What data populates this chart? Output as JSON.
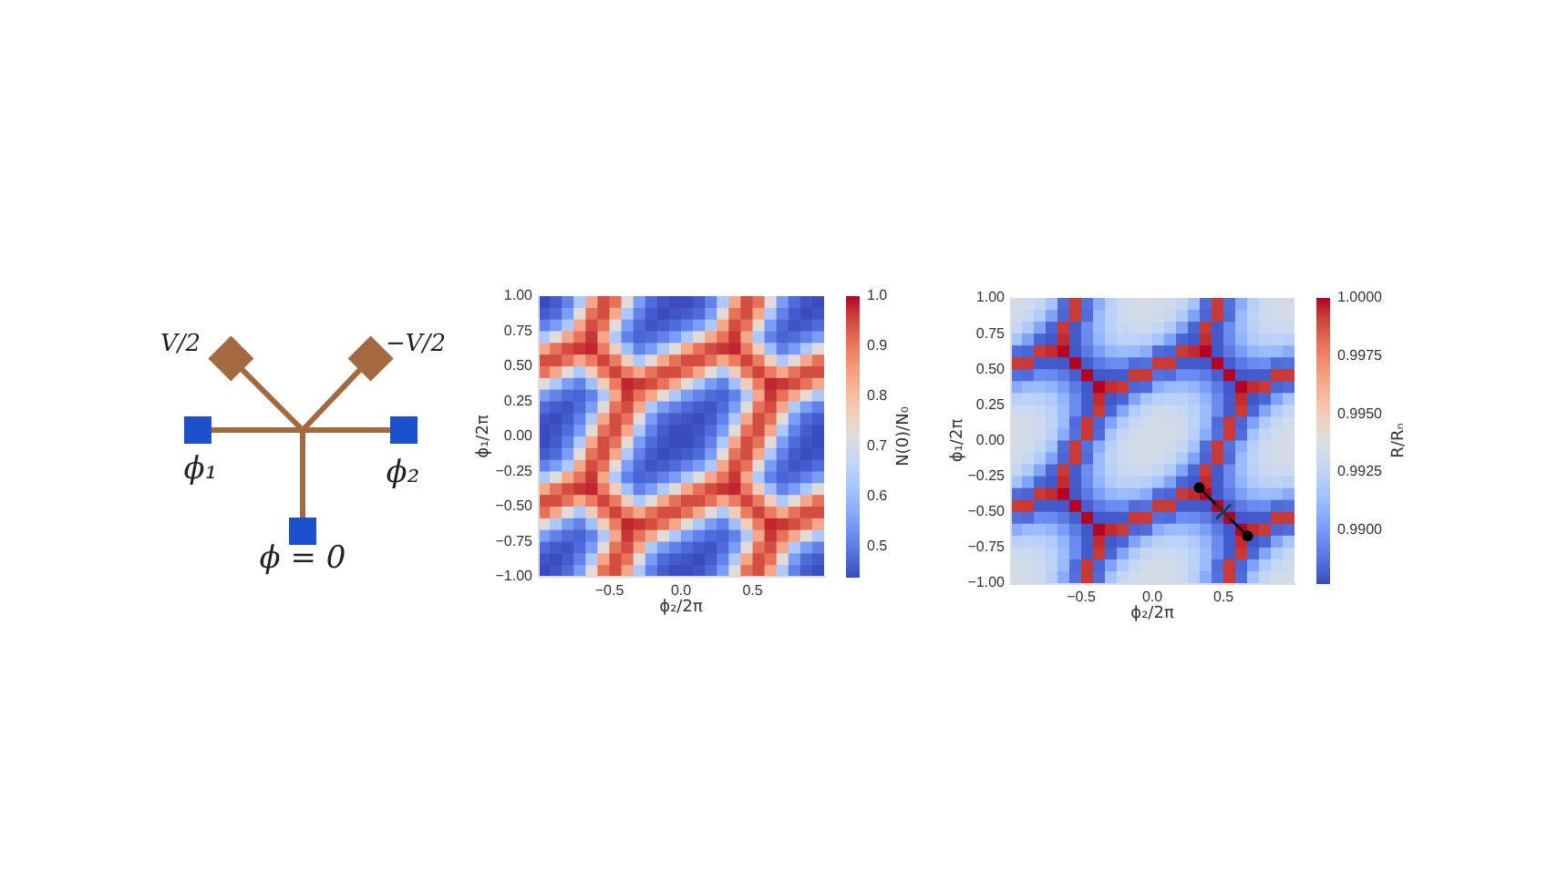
{
  "chart_data": [
    {
      "type": "other",
      "annotations": [
        "V/2",
        "−V/2",
        "ϕ₁",
        "ϕ₂",
        "ϕ = 0"
      ]
    },
    {
      "type": "heatmap",
      "xlabel": "ϕ₂/2π",
      "ylabel": "ϕ₁/2π",
      "clabel": "N(0)/N₀",
      "xlim": [
        -1,
        1
      ],
      "ylim": [
        -1,
        1
      ],
      "xticks": [
        {
          "value": -0.5,
          "label": "−0.5"
        },
        {
          "value": 0,
          "label": "0.0"
        },
        {
          "value": 0.5,
          "label": "0.5"
        }
      ],
      "yticks": [
        {
          "value": -1,
          "label": "−1.00"
        },
        {
          "value": -0.75,
          "label": "−0.75"
        },
        {
          "value": -0.5,
          "label": "−0.50"
        },
        {
          "value": -0.25,
          "label": "−0.25"
        },
        {
          "value": 0,
          "label": "0.00"
        },
        {
          "value": 0.25,
          "label": "0.25"
        },
        {
          "value": 0.5,
          "label": "0.50"
        },
        {
          "value": 0.75,
          "label": "0.75"
        },
        {
          "value": 1,
          "label": "1.00"
        }
      ],
      "clim": [
        0.44,
        1
      ],
      "cticks": [
        {
          "value": 0.5,
          "label": "0.5"
        },
        {
          "value": 0.6,
          "label": "0.6"
        },
        {
          "value": 0.7,
          "label": "0.7"
        },
        {
          "value": 0.8,
          "label": "0.8"
        },
        {
          "value": 0.9,
          "label": "0.9"
        },
        {
          "value": 1,
          "label": "1.0"
        }
      ],
      "cells": [
        [
          0.44,
          0.46,
          0.51,
          0.63,
          0.84,
          0.95,
          0.91,
          0.73,
          0.55,
          0.48,
          0.45,
          0.44,
          0.44,
          0.46,
          0.51,
          0.63,
          0.84,
          0.95,
          0.91,
          0.73,
          0.55,
          0.48,
          0.45,
          0.44
        ],
        [
          0.46,
          0.48,
          0.55,
          0.73,
          0.91,
          0.95,
          0.84,
          0.63,
          0.51,
          0.46,
          0.44,
          0.45,
          0.46,
          0.48,
          0.55,
          0.73,
          0.91,
          0.95,
          0.84,
          0.63,
          0.51,
          0.46,
          0.44,
          0.45
        ],
        [
          0.51,
          0.55,
          0.63,
          0.84,
          0.95,
          0.91,
          0.73,
          0.55,
          0.48,
          0.45,
          0.46,
          0.48,
          0.51,
          0.55,
          0.63,
          0.84,
          0.95,
          0.91,
          0.73,
          0.55,
          0.48,
          0.45,
          0.46,
          0.48
        ],
        [
          0.63,
          0.73,
          0.84,
          0.91,
          0.97,
          0.84,
          0.63,
          0.51,
          0.47,
          0.48,
          0.51,
          0.55,
          0.63,
          0.73,
          0.84,
          0.91,
          0.97,
          0.84,
          0.63,
          0.51,
          0.47,
          0.48,
          0.51,
          0.55
        ],
        [
          0.84,
          0.91,
          0.95,
          0.97,
          0.98,
          0.9,
          0.77,
          0.61,
          0.51,
          0.55,
          0.63,
          0.73,
          0.84,
          0.91,
          0.95,
          0.97,
          0.98,
          0.9,
          0.77,
          0.61,
          0.51,
          0.55,
          0.63,
          0.73
        ],
        [
          0.95,
          0.95,
          0.91,
          0.84,
          0.9,
          0.96,
          0.9,
          0.77,
          0.63,
          0.73,
          0.84,
          0.91,
          0.95,
          0.95,
          0.91,
          0.84,
          0.9,
          0.96,
          0.9,
          0.77,
          0.63,
          0.73,
          0.84,
          0.91
        ],
        [
          0.91,
          0.84,
          0.73,
          0.63,
          0.77,
          0.9,
          0.96,
          0.9,
          0.84,
          0.91,
          0.95,
          0.95,
          0.91,
          0.84,
          0.73,
          0.63,
          0.77,
          0.9,
          0.96,
          0.9,
          0.84,
          0.91,
          0.95,
          0.95
        ],
        [
          0.73,
          0.63,
          0.55,
          0.51,
          0.61,
          0.77,
          0.9,
          0.98,
          0.97,
          0.95,
          0.91,
          0.84,
          0.73,
          0.63,
          0.55,
          0.51,
          0.61,
          0.77,
          0.9,
          0.98,
          0.97,
          0.95,
          0.91,
          0.84
        ],
        [
          0.55,
          0.51,
          0.48,
          0.47,
          0.51,
          0.63,
          0.84,
          0.97,
          0.91,
          0.84,
          0.73,
          0.63,
          0.55,
          0.51,
          0.48,
          0.47,
          0.51,
          0.63,
          0.84,
          0.97,
          0.91,
          0.84,
          0.73,
          0.63
        ],
        [
          0.48,
          0.46,
          0.45,
          0.48,
          0.55,
          0.73,
          0.91,
          0.95,
          0.84,
          0.63,
          0.55,
          0.51,
          0.48,
          0.46,
          0.45,
          0.48,
          0.55,
          0.73,
          0.91,
          0.95,
          0.84,
          0.63,
          0.55,
          0.51
        ],
        [
          0.45,
          0.44,
          0.46,
          0.51,
          0.63,
          0.84,
          0.95,
          0.91,
          0.73,
          0.55,
          0.48,
          0.46,
          0.45,
          0.44,
          0.46,
          0.51,
          0.63,
          0.84,
          0.95,
          0.91,
          0.73,
          0.55,
          0.48,
          0.46
        ],
        [
          0.44,
          0.45,
          0.48,
          0.55,
          0.73,
          0.91,
          0.95,
          0.84,
          0.63,
          0.51,
          0.46,
          0.44,
          0.44,
          0.45,
          0.48,
          0.55,
          0.73,
          0.91,
          0.95,
          0.84,
          0.63,
          0.51,
          0.46,
          0.44
        ],
        [
          0.44,
          0.46,
          0.51,
          0.63,
          0.84,
          0.95,
          0.91,
          0.73,
          0.55,
          0.48,
          0.45,
          0.44,
          0.44,
          0.46,
          0.51,
          0.63,
          0.84,
          0.95,
          0.91,
          0.73,
          0.55,
          0.48,
          0.45,
          0.44
        ],
        [
          0.46,
          0.48,
          0.55,
          0.73,
          0.91,
          0.95,
          0.84,
          0.63,
          0.51,
          0.46,
          0.44,
          0.45,
          0.46,
          0.48,
          0.55,
          0.73,
          0.91,
          0.95,
          0.84,
          0.63,
          0.51,
          0.46,
          0.44,
          0.45
        ],
        [
          0.51,
          0.55,
          0.63,
          0.84,
          0.95,
          0.91,
          0.73,
          0.55,
          0.48,
          0.45,
          0.46,
          0.48,
          0.51,
          0.55,
          0.63,
          0.84,
          0.95,
          0.91,
          0.73,
          0.55,
          0.48,
          0.45,
          0.46,
          0.48
        ],
        [
          0.63,
          0.73,
          0.84,
          0.91,
          0.97,
          0.84,
          0.63,
          0.51,
          0.47,
          0.48,
          0.51,
          0.55,
          0.63,
          0.73,
          0.84,
          0.91,
          0.97,
          0.84,
          0.63,
          0.51,
          0.47,
          0.48,
          0.51,
          0.55
        ],
        [
          0.84,
          0.91,
          0.95,
          0.97,
          0.98,
          0.9,
          0.77,
          0.61,
          0.51,
          0.55,
          0.63,
          0.73,
          0.84,
          0.91,
          0.95,
          0.97,
          0.98,
          0.9,
          0.77,
          0.61,
          0.51,
          0.55,
          0.63,
          0.73
        ],
        [
          0.95,
          0.95,
          0.91,
          0.84,
          0.9,
          0.96,
          0.9,
          0.77,
          0.63,
          0.73,
          0.84,
          0.91,
          0.95,
          0.95,
          0.91,
          0.84,
          0.9,
          0.96,
          0.9,
          0.77,
          0.63,
          0.73,
          0.84,
          0.91
        ],
        [
          0.91,
          0.84,
          0.73,
          0.63,
          0.77,
          0.9,
          0.96,
          0.9,
          0.84,
          0.91,
          0.95,
          0.95,
          0.91,
          0.84,
          0.73,
          0.63,
          0.77,
          0.9,
          0.96,
          0.9,
          0.84,
          0.91,
          0.95,
          0.95
        ],
        [
          0.73,
          0.63,
          0.55,
          0.51,
          0.61,
          0.77,
          0.9,
          0.98,
          0.97,
          0.95,
          0.91,
          0.84,
          0.73,
          0.63,
          0.55,
          0.51,
          0.61,
          0.77,
          0.9,
          0.98,
          0.97,
          0.95,
          0.91,
          0.84
        ],
        [
          0.55,
          0.51,
          0.48,
          0.47,
          0.51,
          0.63,
          0.84,
          0.97,
          0.91,
          0.84,
          0.73,
          0.63,
          0.55,
          0.51,
          0.48,
          0.47,
          0.51,
          0.63,
          0.84,
          0.97,
          0.91,
          0.84,
          0.73,
          0.63
        ],
        [
          0.48,
          0.46,
          0.45,
          0.48,
          0.55,
          0.73,
          0.91,
          0.95,
          0.84,
          0.63,
          0.55,
          0.51,
          0.48,
          0.46,
          0.45,
          0.48,
          0.55,
          0.73,
          0.91,
          0.95,
          0.84,
          0.63,
          0.55,
          0.51
        ],
        [
          0.45,
          0.44,
          0.46,
          0.51,
          0.63,
          0.84,
          0.95,
          0.91,
          0.73,
          0.55,
          0.48,
          0.46,
          0.45,
          0.44,
          0.46,
          0.51,
          0.63,
          0.84,
          0.95,
          0.91,
          0.73,
          0.55,
          0.48,
          0.46
        ],
        [
          0.44,
          0.45,
          0.48,
          0.55,
          0.73,
          0.91,
          0.95,
          0.84,
          0.63,
          0.51,
          0.46,
          0.44,
          0.44,
          0.45,
          0.48,
          0.55,
          0.73,
          0.91,
          0.95,
          0.84,
          0.63,
          0.51,
          0.46,
          0.44
        ]
      ]
    },
    {
      "type": "heatmap",
      "xlabel": "ϕ₂/2π",
      "ylabel": "ϕ₁/2π",
      "clabel": "R/Rₙ",
      "xlim": [
        -1,
        1
      ],
      "ylim": [
        -1,
        1
      ],
      "xticks": [
        {
          "value": -0.5,
          "label": "−0.5"
        },
        {
          "value": 0,
          "label": "0.0"
        },
        {
          "value": 0.5,
          "label": "0.5"
        }
      ],
      "yticks": [
        {
          "value": -1,
          "label": "−1.00"
        },
        {
          "value": -0.75,
          "label": "−0.75"
        },
        {
          "value": -0.5,
          "label": "−0.50"
        },
        {
          "value": -0.25,
          "label": "−0.25"
        },
        {
          "value": 0,
          "label": "0.00"
        },
        {
          "value": 0.25,
          "label": "0.25"
        },
        {
          "value": 0.5,
          "label": "0.50"
        },
        {
          "value": 0.75,
          "label": "0.75"
        },
        {
          "value": 1,
          "label": "1.00"
        }
      ],
      "clim": [
        0.9877,
        1
      ],
      "cticks": [
        {
          "value": 0.99,
          "label": "0.9900"
        },
        {
          "value": 0.9925,
          "label": "0.9925"
        },
        {
          "value": 0.995,
          "label": "0.9950"
        },
        {
          "value": 0.9975,
          "label": "0.9975"
        },
        {
          "value": 1,
          "label": "1.0000"
        }
      ],
      "cells": [
        [
          0.9935,
          0.9932,
          0.9928,
          0.9916,
          0.9886,
          0.9993,
          0.9887,
          0.9906,
          0.9923,
          0.9931,
          0.9934,
          0.9935,
          0.9935,
          0.9932,
          0.9928,
          0.9916,
          0.9886,
          0.9993,
          0.9887,
          0.9906,
          0.9923,
          0.9931,
          0.9934,
          0.9935
        ],
        [
          0.9932,
          0.9929,
          0.992,
          0.9903,
          0.9884,
          0.9993,
          0.9886,
          0.9912,
          0.9925,
          0.9931,
          0.9933,
          0.9934,
          0.9932,
          0.9929,
          0.992,
          0.9903,
          0.9884,
          0.9993,
          0.9886,
          0.9912,
          0.9925,
          0.9931,
          0.9933,
          0.9934
        ],
        [
          0.9928,
          0.992,
          0.9904,
          0.9884,
          0.9993,
          0.9881,
          0.9896,
          0.9913,
          0.9924,
          0.9929,
          0.9931,
          0.9931,
          0.9928,
          0.992,
          0.9904,
          0.9884,
          0.9993,
          0.9881,
          0.9896,
          0.9913,
          0.9924,
          0.9929,
          0.9931,
          0.9931
        ],
        [
          0.9916,
          0.9903,
          0.9884,
          0.988,
          0.9995,
          0.9881,
          0.9895,
          0.991,
          0.992,
          0.9924,
          0.9925,
          0.9923,
          0.9916,
          0.9903,
          0.9884,
          0.988,
          0.9995,
          0.9881,
          0.9895,
          0.991,
          0.992,
          0.9924,
          0.9925,
          0.9923
        ],
        [
          0.9886,
          0.9884,
          0.9993,
          0.9995,
          1,
          0.988,
          0.989,
          0.9901,
          0.991,
          0.9913,
          0.9912,
          0.9906,
          0.9886,
          0.9884,
          0.9993,
          0.9995,
          1,
          0.988,
          0.989,
          0.9901,
          0.991,
          0.9913,
          0.9912,
          0.9906
        ],
        [
          0.9993,
          0.9993,
          0.9881,
          0.9881,
          0.988,
          1,
          0.9882,
          0.989,
          0.9895,
          0.9896,
          0.9886,
          0.9887,
          0.9993,
          0.9993,
          0.9881,
          0.9881,
          0.988,
          1,
          0.9882,
          0.989,
          0.9895,
          0.9896,
          0.9886,
          0.9887
        ],
        [
          0.9887,
          0.9886,
          0.9896,
          0.9895,
          0.989,
          0.9882,
          1,
          0.988,
          0.9881,
          0.9881,
          0.9993,
          0.9993,
          0.9887,
          0.9886,
          0.9896,
          0.9895,
          0.989,
          0.9882,
          1,
          0.988,
          0.9881,
          0.9881,
          0.9993,
          0.9993
        ],
        [
          0.9906,
          0.9912,
          0.9913,
          0.991,
          0.9901,
          0.989,
          0.988,
          1,
          0.9995,
          0.9993,
          0.9884,
          0.9886,
          0.9906,
          0.9912,
          0.9913,
          0.991,
          0.9901,
          0.989,
          0.988,
          1,
          0.9995,
          0.9993,
          0.9884,
          0.9886
        ],
        [
          0.9923,
          0.9925,
          0.9924,
          0.992,
          0.991,
          0.9895,
          0.9881,
          0.9995,
          0.988,
          0.9884,
          0.9903,
          0.9916,
          0.9923,
          0.9925,
          0.9924,
          0.992,
          0.991,
          0.9895,
          0.9881,
          0.9995,
          0.988,
          0.9884,
          0.9903,
          0.9916
        ],
        [
          0.9931,
          0.9931,
          0.9929,
          0.9924,
          0.9913,
          0.9896,
          0.9881,
          0.9993,
          0.9884,
          0.9904,
          0.992,
          0.9928,
          0.9931,
          0.9931,
          0.9929,
          0.9924,
          0.9913,
          0.9896,
          0.9881,
          0.9993,
          0.9884,
          0.9904,
          0.992,
          0.9928
        ],
        [
          0.9934,
          0.9933,
          0.9931,
          0.9925,
          0.9912,
          0.9886,
          0.9993,
          0.9884,
          0.9903,
          0.992,
          0.9929,
          0.9932,
          0.9934,
          0.9933,
          0.9931,
          0.9925,
          0.9912,
          0.9886,
          0.9993,
          0.9884,
          0.9903,
          0.992,
          0.9929,
          0.9932
        ],
        [
          0.9935,
          0.9934,
          0.9931,
          0.9923,
          0.9906,
          0.9887,
          0.9993,
          0.9886,
          0.9916,
          0.9928,
          0.9932,
          0.9935,
          0.9935,
          0.9934,
          0.9931,
          0.9923,
          0.9906,
          0.9887,
          0.9993,
          0.9886,
          0.9916,
          0.9928,
          0.9932,
          0.9935
        ],
        [
          0.9935,
          0.9932,
          0.9928,
          0.9916,
          0.9886,
          0.9993,
          0.9887,
          0.9906,
          0.9923,
          0.9931,
          0.9934,
          0.9935,
          0.9935,
          0.9932,
          0.9928,
          0.9916,
          0.9886,
          0.9993,
          0.9887,
          0.9906,
          0.9923,
          0.9931,
          0.9934,
          0.9935
        ],
        [
          0.9932,
          0.9929,
          0.992,
          0.9903,
          0.9884,
          0.9993,
          0.9886,
          0.9912,
          0.9925,
          0.9931,
          0.9933,
          0.9934,
          0.9932,
          0.9929,
          0.992,
          0.9903,
          0.9884,
          0.9993,
          0.9886,
          0.9912,
          0.9925,
          0.9931,
          0.9933,
          0.9934
        ],
        [
          0.9928,
          0.992,
          0.9904,
          0.9884,
          0.9993,
          0.9881,
          0.9896,
          0.9913,
          0.9924,
          0.9929,
          0.9931,
          0.9931,
          0.9928,
          0.992,
          0.9904,
          0.9884,
          0.9993,
          0.9881,
          0.9896,
          0.9913,
          0.9924,
          0.9929,
          0.9931,
          0.9931
        ],
        [
          0.9916,
          0.9903,
          0.9884,
          0.988,
          0.9995,
          0.9881,
          0.9895,
          0.991,
          0.992,
          0.9924,
          0.9925,
          0.9923,
          0.9916,
          0.9903,
          0.9884,
          0.988,
          0.9995,
          0.9881,
          0.9895,
          0.991,
          0.992,
          0.9924,
          0.9925,
          0.9923
        ],
        [
          0.9886,
          0.9884,
          0.9993,
          0.9995,
          1,
          0.988,
          0.989,
          0.9901,
          0.991,
          0.9913,
          0.9912,
          0.9906,
          0.9886,
          0.9884,
          0.9993,
          0.9995,
          1,
          0.988,
          0.989,
          0.9901,
          0.991,
          0.9913,
          0.9912,
          0.9906
        ],
        [
          0.9993,
          0.9993,
          0.9881,
          0.9881,
          0.988,
          1,
          0.9882,
          0.989,
          0.9895,
          0.9896,
          0.9886,
          0.9887,
          0.9993,
          0.9993,
          0.9881,
          0.9881,
          0.988,
          1,
          0.9882,
          0.989,
          0.9895,
          0.9896,
          0.9886,
          0.9887
        ],
        [
          0.9887,
          0.9886,
          0.9896,
          0.9895,
          0.989,
          0.9882,
          1,
          0.988,
          0.9881,
          0.9881,
          0.9993,
          0.9993,
          0.9887,
          0.9886,
          0.9896,
          0.9895,
          0.989,
          0.9882,
          1,
          0.988,
          0.9881,
          0.9881,
          0.9993,
          0.9993
        ],
        [
          0.9906,
          0.9912,
          0.9913,
          0.991,
          0.9901,
          0.989,
          0.988,
          1,
          0.9995,
          0.9993,
          0.9884,
          0.9886,
          0.9906,
          0.9912,
          0.9913,
          0.991,
          0.9901,
          0.989,
          0.988,
          1,
          0.9995,
          0.9993,
          0.9884,
          0.9886
        ],
        [
          0.9923,
          0.9925,
          0.9924,
          0.992,
          0.991,
          0.9895,
          0.9881,
          0.9995,
          0.988,
          0.9884,
          0.9903,
          0.9916,
          0.9923,
          0.9925,
          0.9924,
          0.992,
          0.991,
          0.9895,
          0.9881,
          0.9995,
          0.988,
          0.9884,
          0.9903,
          0.9916
        ],
        [
          0.9931,
          0.9931,
          0.9929,
          0.9924,
          0.9913,
          0.9896,
          0.9881,
          0.9993,
          0.9884,
          0.9904,
          0.992,
          0.9928,
          0.9931,
          0.9931,
          0.9929,
          0.9924,
          0.9913,
          0.9896,
          0.9881,
          0.9993,
          0.9884,
          0.9904,
          0.992,
          0.9928
        ],
        [
          0.9934,
          0.9933,
          0.9931,
          0.9925,
          0.9912,
          0.9886,
          0.9993,
          0.9884,
          0.9903,
          0.992,
          0.9929,
          0.9932,
          0.9934,
          0.9933,
          0.9931,
          0.9925,
          0.9912,
          0.9886,
          0.9993,
          0.9884,
          0.9903,
          0.992,
          0.9929,
          0.9932
        ],
        [
          0.9935,
          0.9934,
          0.9931,
          0.9923,
          0.9906,
          0.9887,
          0.9993,
          0.9886,
          0.9916,
          0.9928,
          0.9932,
          0.9935,
          0.9935,
          0.9934,
          0.9931,
          0.9923,
          0.9906,
          0.9887,
          0.9993,
          0.9886,
          0.9916,
          0.9928,
          0.9932,
          0.9935
        ]
      ],
      "series": [
        {
          "type": "line",
          "x": [
            0.33,
            0.67
          ],
          "values": [
            -0.33,
            -0.67
          ],
          "color": "#000000",
          "marker": "circle"
        },
        {
          "type": "scatter",
          "x": [
            0.5
          ],
          "values": [
            -0.5
          ],
          "color": "#333333",
          "marker": "cross"
        }
      ]
    }
  ]
}
